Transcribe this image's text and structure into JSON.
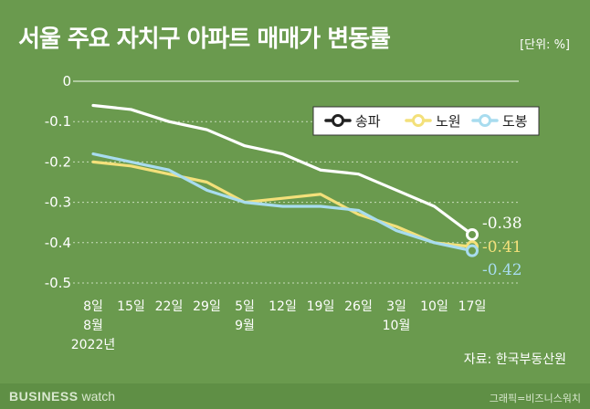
{
  "title": "서울 주요 자치구 아파트 매매가 변동률",
  "unit_label": "[단위: %]",
  "source": "자료: 한국부동산원",
  "brand": {
    "strong": "BUSINESS",
    "light": "watch"
  },
  "credit": "그래픽=비즈니스워치",
  "colors": {
    "background": "#6a9a4e",
    "songpa": "#ffffff",
    "nowon": "#f3e07a",
    "dobong": "#a8dcef",
    "grid": "#c8dcbb"
  },
  "chart_data": {
    "type": "line",
    "title": "서울 주요 자치구 아파트 매매가 변동률",
    "unit": "%",
    "categories": [
      "8일",
      "15일",
      "22일",
      "29일",
      "5일",
      "12일",
      "19일",
      "26일",
      "3일",
      "10일",
      "17일"
    ],
    "category_sublabels": [
      "8월",
      "",
      "",
      "",
      "9월",
      "",
      "",
      "",
      "10월",
      "",
      ""
    ],
    "year_label": "2022년",
    "y_ticks": [
      "0",
      "-0.1",
      "-0.2",
      "-0.3",
      "-0.4",
      "-0.5"
    ],
    "ylim": [
      -0.5,
      0
    ],
    "series": [
      {
        "name": "송파",
        "values": [
          -0.06,
          -0.07,
          -0.1,
          -0.12,
          -0.16,
          -0.18,
          -0.22,
          -0.23,
          -0.27,
          -0.31,
          -0.38
        ],
        "end_label": "-0.38"
      },
      {
        "name": "노원",
        "values": [
          -0.2,
          -0.21,
          -0.23,
          -0.25,
          -0.3,
          -0.29,
          -0.28,
          -0.33,
          -0.36,
          -0.4,
          -0.41
        ],
        "end_label": "-0.41"
      },
      {
        "name": "도봉",
        "values": [
          -0.18,
          -0.2,
          -0.22,
          -0.27,
          -0.3,
          -0.31,
          -0.31,
          -0.32,
          -0.37,
          -0.4,
          -0.42
        ],
        "end_label": "-0.42"
      }
    ],
    "legend_position": "top-right"
  }
}
